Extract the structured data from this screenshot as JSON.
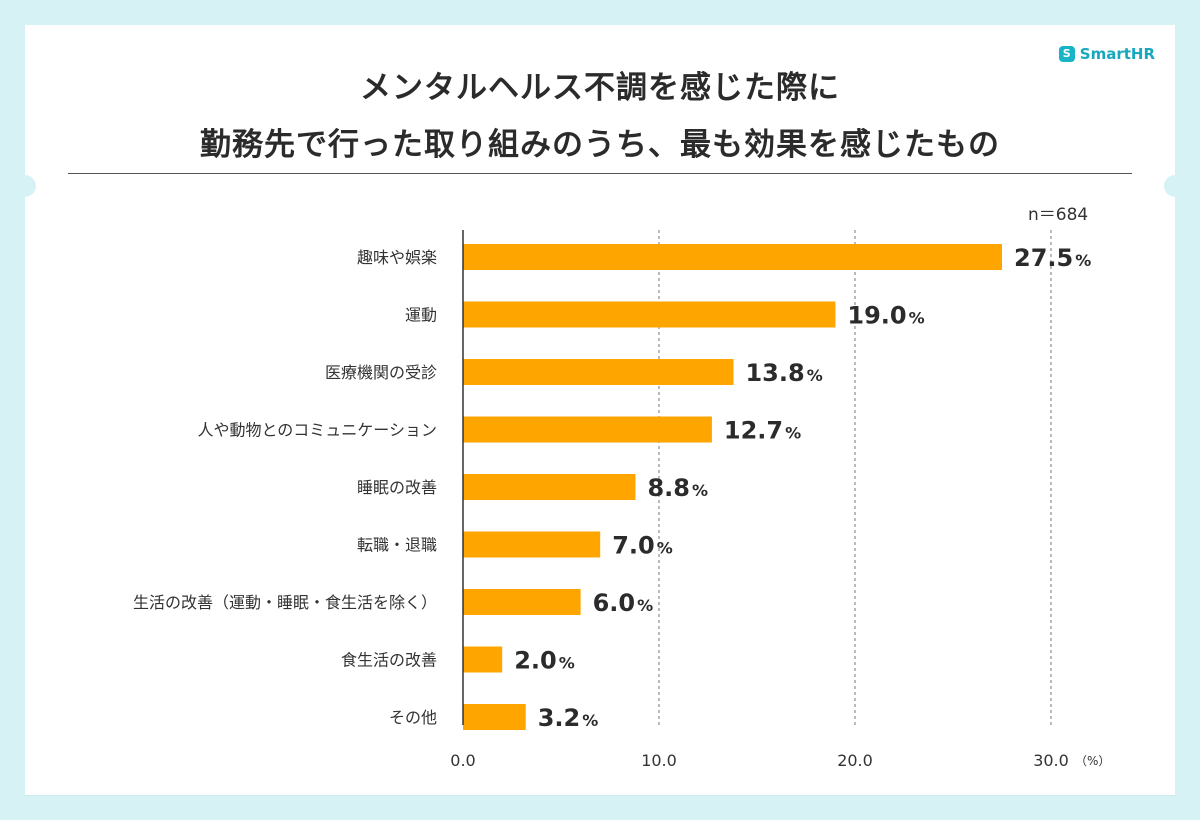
{
  "brand": {
    "mark": "S",
    "name": "SmartHR"
  },
  "title": {
    "line1": "メンタルヘルス不調を感じた際に",
    "line2": "勤務先で行った取り組みのうち、最も効果を感じたもの"
  },
  "sample_size": "n＝684",
  "colors": {
    "bar": "#ffa500",
    "background": "#d6f2f5",
    "accent": "#17a8bd"
  },
  "chart_data": {
    "type": "bar",
    "orientation": "horizontal",
    "title": "メンタルヘルス不調を感じた際に 勤務先で行った取り組みのうち、最も効果を感じたもの",
    "categories": [
      "趣味や娯楽",
      "運動",
      "医療機関の受診",
      "人や動物とのコミュニケーション",
      "睡眠の改善",
      "転職・退職",
      "生活の改善（運動・睡眠・食生活を除く）",
      "食生活の改善",
      "その他"
    ],
    "values": [
      27.5,
      19.0,
      13.8,
      12.7,
      8.8,
      7.0,
      6.0,
      2.0,
      3.2
    ],
    "value_labels": [
      "27.5",
      "19.0",
      "13.8",
      "12.7",
      "8.8",
      "7.0",
      "6.0",
      "2.0",
      "3.2"
    ],
    "value_suffix": "%",
    "xlim": [
      0,
      30
    ],
    "xticks": [
      "0.0",
      "10.0",
      "20.0",
      "30.0"
    ],
    "xtick_values": [
      0,
      10,
      20,
      30
    ],
    "x_unit": "（%）",
    "grid": "vertical dashed"
  }
}
